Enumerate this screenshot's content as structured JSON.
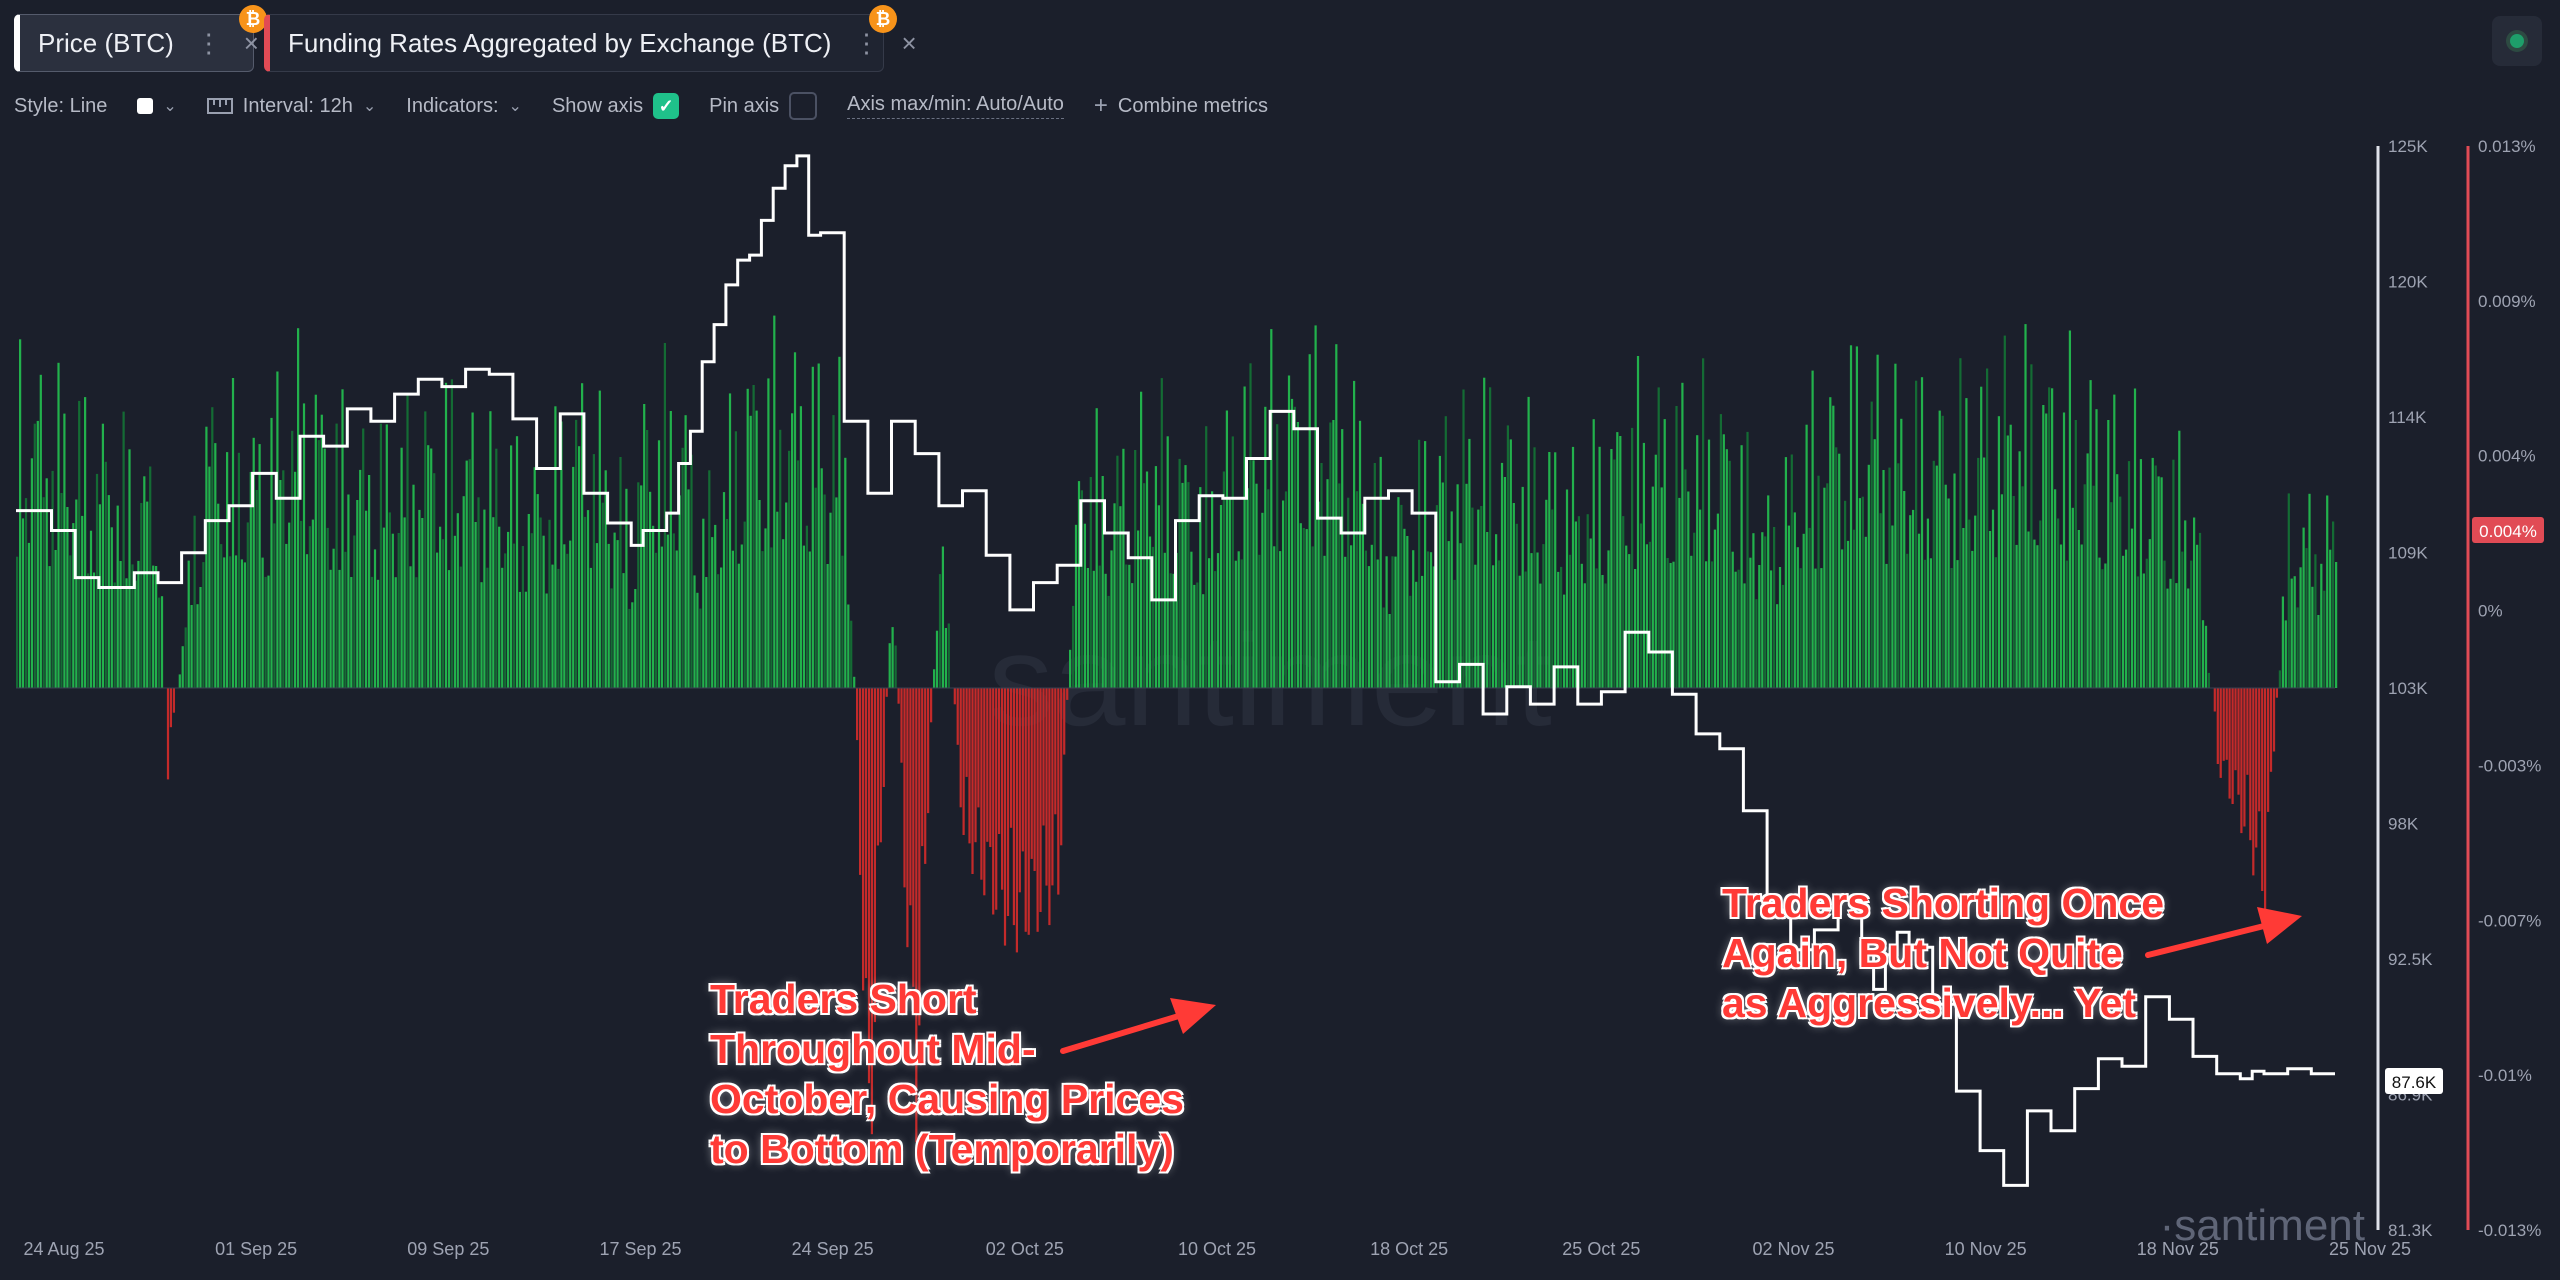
{
  "tabs": [
    {
      "label": "Price (BTC)",
      "dots": "⋮",
      "close": "×",
      "badge": "₿"
    },
    {
      "label": "Funding Rates Aggregated by Exchange (BTC)",
      "dots": "⋮",
      "close": "×",
      "badge": "₿"
    }
  ],
  "toolbar": {
    "style": "Style: Line",
    "interval": "Interval: 12h",
    "indicators": "Indicators:",
    "show_axis": "Show axis",
    "pin_axis": "Pin axis",
    "axis_maxmin": "Axis max/min: Auto/Auto",
    "combine": "Combine metrics"
  },
  "watermark": {
    "center": "santiment",
    "corner": "·santiment"
  },
  "annotations": [
    {
      "lines": [
        "Traders Short",
        "Throughout Mid-",
        "October, Causing Prices",
        "to Bottom (Temporarily)"
      ]
    },
    {
      "lines": [
        "Traders Shorting Once",
        "Again, But Not Quite",
        "as Aggressively... Yet"
      ]
    }
  ],
  "colors": {
    "background": "#1b1f2b",
    "price_line": "#ffffff",
    "funding_positive": "#22b14c",
    "funding_positive_dark": "#146b34",
    "funding_negative": "#c42a2a",
    "axis_accent": "#e14b55"
  },
  "chart_data": {
    "type": "line+bar",
    "x_ticks": [
      "24 Aug 25",
      "01 Sep 25",
      "09 Sep 25",
      "17 Sep 25",
      "24 Sep 25",
      "02 Oct 25",
      "10 Oct 25",
      "18 Oct 25",
      "25 Oct 25",
      "02 Nov 25",
      "10 Nov 25",
      "18 Nov 25",
      "25 Nov 25"
    ],
    "price_axis": {
      "ticks": [
        "125K",
        "120K",
        "114K",
        "109K",
        "103K",
        "98K",
        "92.5K",
        "86.9K",
        "81.3K"
      ],
      "ylim": [
        81300,
        125000
      ],
      "current_label": "87.6K"
    },
    "funding_axis": {
      "ticks": [
        "0.013%",
        "0.009%",
        "0.004%",
        "0%",
        "-0.003%",
        "-0.007%",
        "-0.01%",
        "-0.013%"
      ],
      "ylim": [
        -0.013,
        0.013
      ],
      "current_label": "0.004%"
    },
    "series": [
      {
        "name": "Price (BTC)",
        "style": "step-line",
        "x_days": [
          0,
          3,
          5,
          7,
          10,
          12,
          14,
          16,
          18,
          20,
          22,
          24,
          26,
          28,
          30,
          32,
          34,
          36,
          38,
          40,
          42,
          44,
          46,
          48,
          50,
          52,
          53,
          55,
          56,
          57,
          58,
          59,
          60,
          61,
          62,
          63,
          64,
          65,
          66,
          67,
          68,
          70,
          72,
          74,
          76,
          78,
          80,
          82,
          84,
          86,
          88,
          90,
          92,
          94,
          96,
          98,
          100,
          102,
          104,
          106,
          108,
          110,
          112,
          114,
          116,
          118,
          120,
          122,
          124,
          126,
          128,
          130,
          132,
          134,
          136,
          138,
          140,
          142,
          144,
          146,
          148,
          150,
          152,
          154,
          155,
          156,
          157,
          158,
          159,
          160,
          162,
          164,
          166,
          168,
          170,
          172,
          174,
          176,
          178,
          180,
          182,
          184,
          186,
          187,
          188,
          189,
          190,
          192,
          194,
          196
        ],
        "values": [
          110300,
          109500,
          107600,
          107200,
          107800,
          107400,
          108600,
          109900,
          110500,
          111800,
          110800,
          113300,
          112900,
          114400,
          113900,
          115000,
          115600,
          115300,
          116000,
          115800,
          114000,
          112000,
          114200,
          111000,
          109800,
          108900,
          109500,
          110200,
          112200,
          113500,
          116300,
          117800,
          119400,
          120400,
          120600,
          122000,
          123300,
          124200,
          124600,
          121400,
          121500,
          113900,
          111000,
          113900,
          112600,
          110500,
          111100,
          108500,
          106300,
          107400,
          108100,
          110700,
          109400,
          108400,
          106700,
          109900,
          110900,
          110800,
          112400,
          114300,
          113600,
          110000,
          109400,
          110800,
          111100,
          110200,
          103400,
          104100,
          102100,
          103200,
          102500,
          104000,
          102500,
          103000,
          105400,
          104600,
          102900,
          101300,
          100700,
          98200,
          94200,
          92600,
          93400,
          94600,
          94500,
          92600,
          91000,
          92400,
          93300,
          92700,
          90400,
          86900,
          84500,
          83100,
          86100,
          85300,
          87000,
          88200,
          87900,
          90700,
          89800,
          88300,
          87600,
          87600,
          87400,
          87700,
          87600,
          87800,
          87600,
          87600
        ]
      },
      {
        "name": "Funding Rates Aggregated by Exchange (BTC)",
        "style": "bars",
        "x_days": [
          0,
          4,
          8,
          12,
          12.7,
          16,
          20,
          24,
          28,
          32,
          36,
          40,
          44,
          48,
          52,
          53,
          56,
          58,
          62,
          66,
          70,
          71,
          72,
          74,
          75,
          76,
          78,
          80,
          84,
          88,
          90,
          92,
          96,
          100,
          104,
          108,
          110,
          112,
          116,
          120,
          124,
          128,
          132,
          136,
          140,
          144,
          148,
          152,
          156,
          160,
          164,
          168,
          172,
          176,
          180,
          184,
          186,
          188,
          190,
          192
        ],
        "values": [
          0.009,
          0.008,
          0.007,
          0.006,
          -0.0025,
          0.008,
          0.007,
          0.009,
          0.007,
          0.007,
          0.008,
          0.007,
          0.006,
          0.0085,
          0.005,
          0.008,
          0.0085,
          0.005,
          0.009,
          0.009,
          0.008,
          -0.002,
          -0.013,
          0.004,
          -0.005,
          -0.011,
          0.005,
          -0.004,
          -0.0065,
          -0.0055,
          0.008,
          0.006,
          0.008,
          0.006,
          0.0085,
          0.009,
          0.009,
          0.009,
          0.005,
          0.007,
          0.008,
          0.007,
          0.006,
          0.008,
          0.008,
          0.008,
          0.005,
          0.008,
          0.009,
          0.008,
          0.008,
          0.009,
          0.009,
          0.008,
          0.007,
          0.006,
          -0.002,
          -0.0035,
          -0.0055,
          0.005
        ]
      }
    ],
    "grid": false,
    "legend": "tabs-top-left"
  }
}
